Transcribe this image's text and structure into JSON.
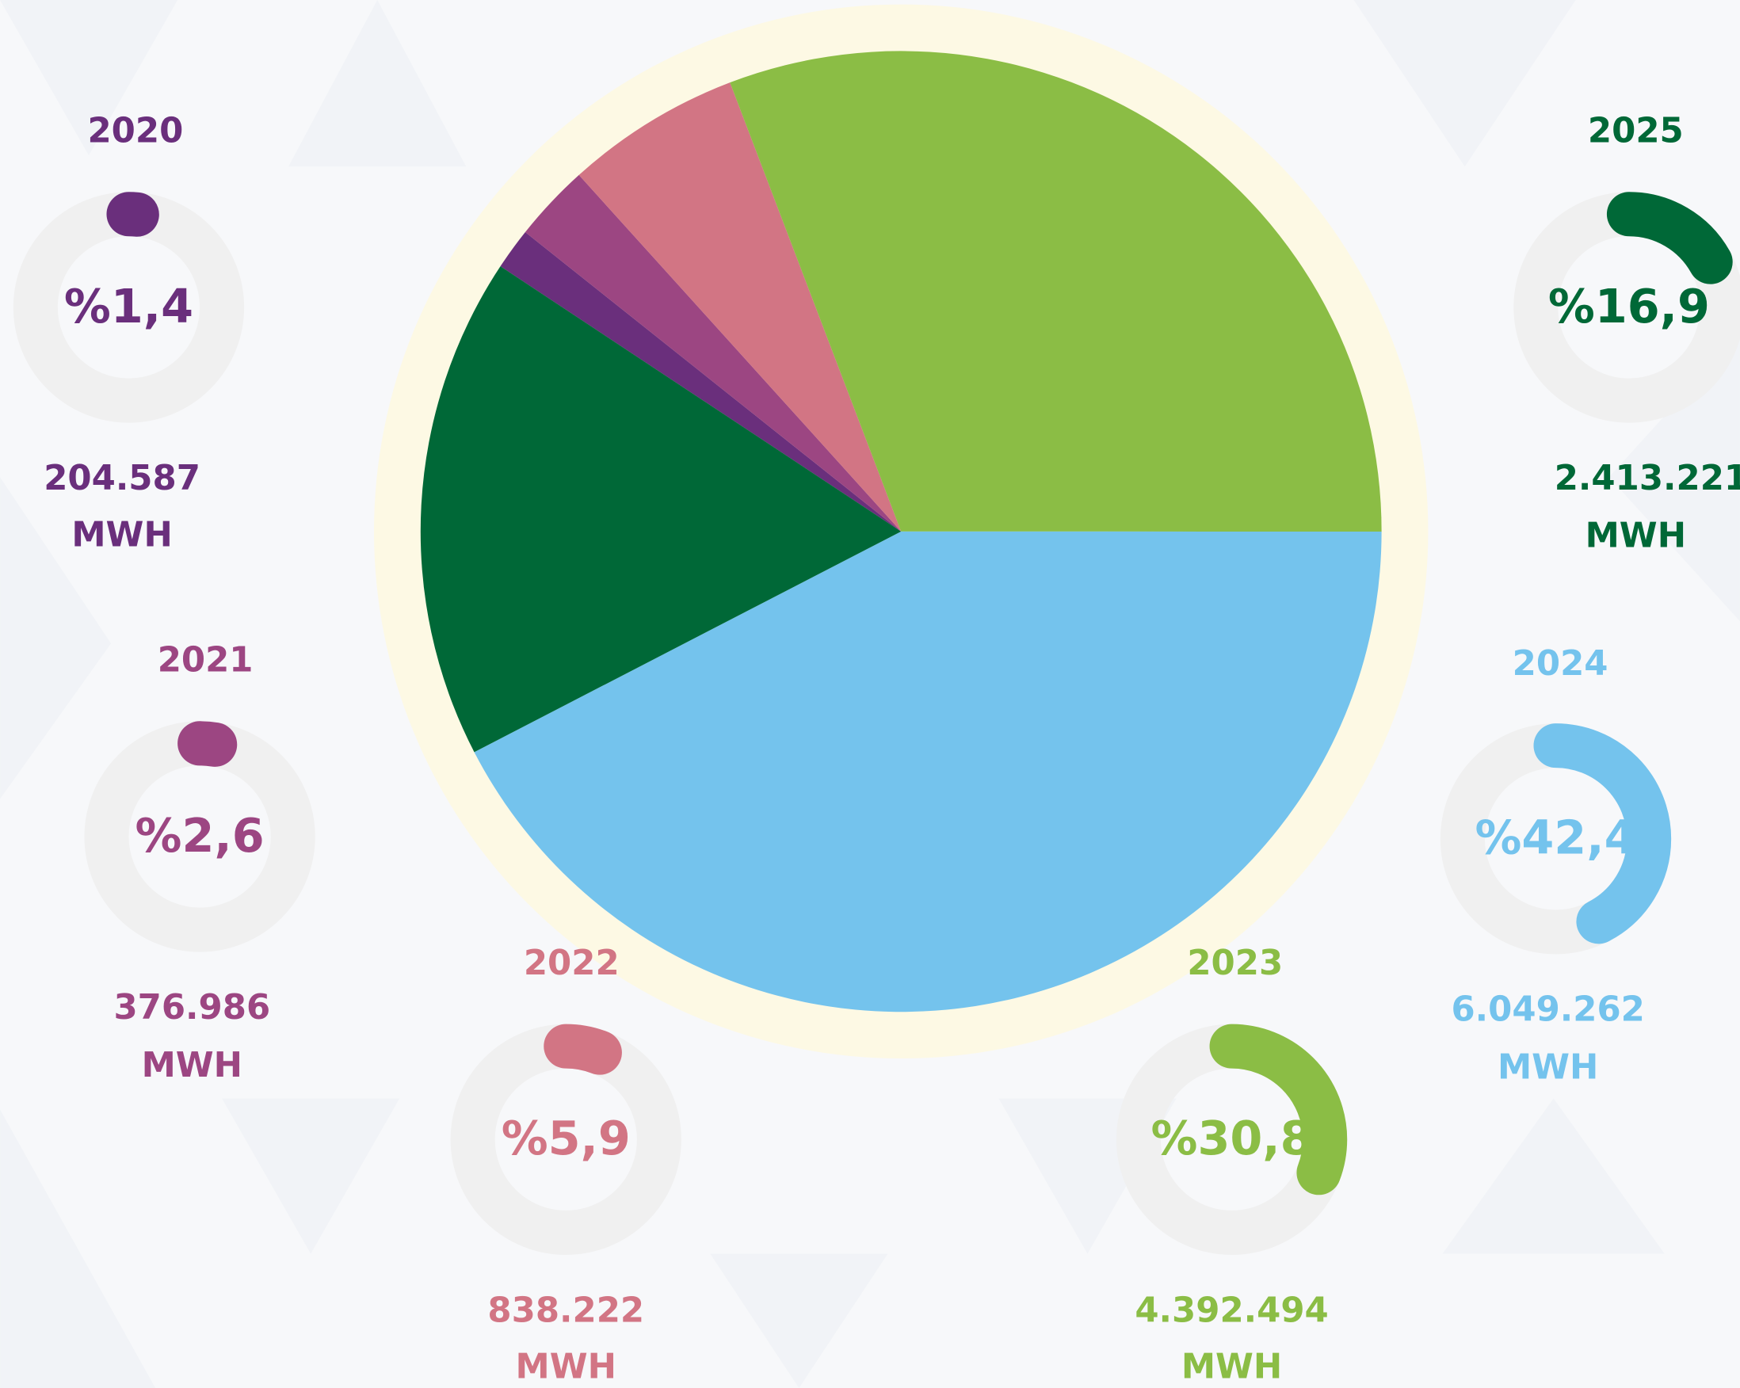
{
  "chart_data": {
    "type": "pie",
    "categories": [
      "2020",
      "2021",
      "2022",
      "2023",
      "2024",
      "2025"
    ],
    "values": [
      1.4,
      2.6,
      5.9,
      30.8,
      42.4,
      16.9
    ],
    "value_labels": [
      "%1,4",
      "%2,6",
      "%5,9",
      "%30,8",
      "%42,4",
      "%16,9"
    ],
    "colors": [
      "#6a2f7c",
      "#9c4682",
      "#d27584",
      "#8bbd45",
      "#74c3ed",
      "#006837"
    ],
    "energy_values": [
      204587,
      376986,
      838222,
      4392494,
      6049262,
      2413221
    ],
    "energy_labels": [
      "204.587",
      "376.986",
      "838.222",
      "4.392.494",
      "6.049.262",
      "2.413.221"
    ],
    "energy_unit": "MWH"
  }
}
